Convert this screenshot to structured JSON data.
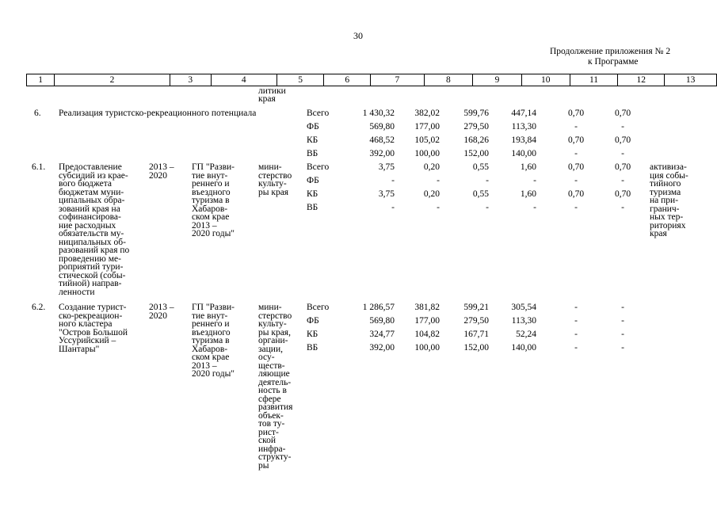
{
  "page_number": "30",
  "continuation": {
    "line1": "Продолжение приложения № 2",
    "line2": "к Программе"
  },
  "header_columns": [
    "1",
    "2",
    "3",
    "4",
    "5",
    "6",
    "7",
    "8",
    "9",
    "10",
    "11",
    "12",
    "13"
  ],
  "carryover_text": [
    "литики",
    "края"
  ],
  "row6": {
    "num": "6.",
    "title": "Реализация туристско-рекреационного потенциала",
    "lines": [
      {
        "src": "Всего",
        "c7": "1 430,32",
        "c8": "382,02",
        "c9": "599,76",
        "c10": "447,14",
        "c11": "0,70",
        "c12": "0,70"
      },
      {
        "src": "ФБ",
        "c7": "569,80",
        "c8": "177,00",
        "c9": "279,50",
        "c10": "113,30",
        "c11": "-",
        "c12": "-"
      },
      {
        "src": "КБ",
        "c7": "468,52",
        "c8": "105,02",
        "c9": "168,26",
        "c10": "193,84",
        "c11": "0,70",
        "c12": "0,70"
      },
      {
        "src": "ВБ",
        "c7": "392,00",
        "c8": "100,00",
        "c9": "152,00",
        "c10": "140,00",
        "c11": "-",
        "c12": "-"
      }
    ]
  },
  "row61": {
    "num": "6.1.",
    "desc": [
      "Предоставление",
      "субсидий из крае-",
      "вого бюджета",
      "бюджетам муни-",
      "ципальных обра-",
      "зований края на",
      "софинансирова-",
      "ние расходных",
      "обязательств му-",
      "ниципальных об-",
      "разований края по",
      "проведению ме-",
      "роприятий тури-",
      "стической (собы-",
      "тийной) направ-",
      "ленности"
    ],
    "period": [
      "2013 –",
      "2020"
    ],
    "program": [
      "ГП \"Разви-",
      "тие внут-",
      "реннего и",
      "въездного",
      "туризма в",
      "Хабаров-",
      "ском крае",
      "2013 –",
      "2020 годы\""
    ],
    "executor": [
      "мини-",
      "стерство",
      "культу-",
      "ры края"
    ],
    "result": [
      "активиза-",
      "ция собы-",
      "тийного",
      "туризма",
      "на при-",
      "гранич-",
      "ных тер-",
      "риториях",
      "края"
    ],
    "lines": [
      {
        "src": "Всего",
        "c7": "3,75",
        "c8": "0,20",
        "c9": "0,55",
        "c10": "1,60",
        "c11": "0,70",
        "c12": "0,70"
      },
      {
        "src": "ФБ",
        "c7": "-",
        "c8": "-",
        "c9": "-",
        "c10": "-",
        "c11": "-",
        "c12": "-"
      },
      {
        "src": "КБ",
        "c7": "3,75",
        "c8": "0,20",
        "c9": "0,55",
        "c10": "1,60",
        "c11": "0,70",
        "c12": "0,70"
      },
      {
        "src": "ВБ",
        "c7": "-",
        "c8": "-",
        "c9": "-",
        "c10": "-",
        "c11": "-",
        "c12": "-"
      }
    ]
  },
  "row62": {
    "num": "6.2.",
    "desc": [
      "Создание турист-",
      "ско-рекреацион-",
      "ного кластера",
      "\"Остров Большой",
      "Уссурийский –",
      "Шантары\""
    ],
    "period": [
      "2013 –",
      "2020"
    ],
    "program": [
      "ГП \"Разви-",
      "тие внут-",
      "реннего и",
      "въездного",
      "туризма в",
      "Хабаров-",
      "ском крае",
      "2013 –",
      "2020 годы\""
    ],
    "executor": [
      "мини-",
      "стерство",
      "культу-",
      "ры края,",
      "органи-",
      "зации,",
      "осу-",
      "ществ-",
      "ляющие",
      "деятель-",
      "ность в",
      "сфере",
      "развития",
      "объек-",
      "тов ту-",
      "рист-",
      "ской",
      "инфра-",
      "структу-",
      "ры"
    ],
    "lines": [
      {
        "src": "Всего",
        "c7": "1 286,57",
        "c8": "381,82",
        "c9": "599,21",
        "c10": "305,54",
        "c11": "-",
        "c12": "-"
      },
      {
        "src": "ФБ",
        "c7": "569,80",
        "c8": "177,00",
        "c9": "279,50",
        "c10": "113,30",
        "c11": "-",
        "c12": "-"
      },
      {
        "src": "КБ",
        "c7": "324,77",
        "c8": "104,82",
        "c9": "167,71",
        "c10": "52,24",
        "c11": "-",
        "c12": "-"
      },
      {
        "src": "ВБ",
        "c7": "392,00",
        "c8": "100,00",
        "c9": "152,00",
        "c10": "140,00",
        "c11": "-",
        "c12": "-"
      }
    ]
  }
}
